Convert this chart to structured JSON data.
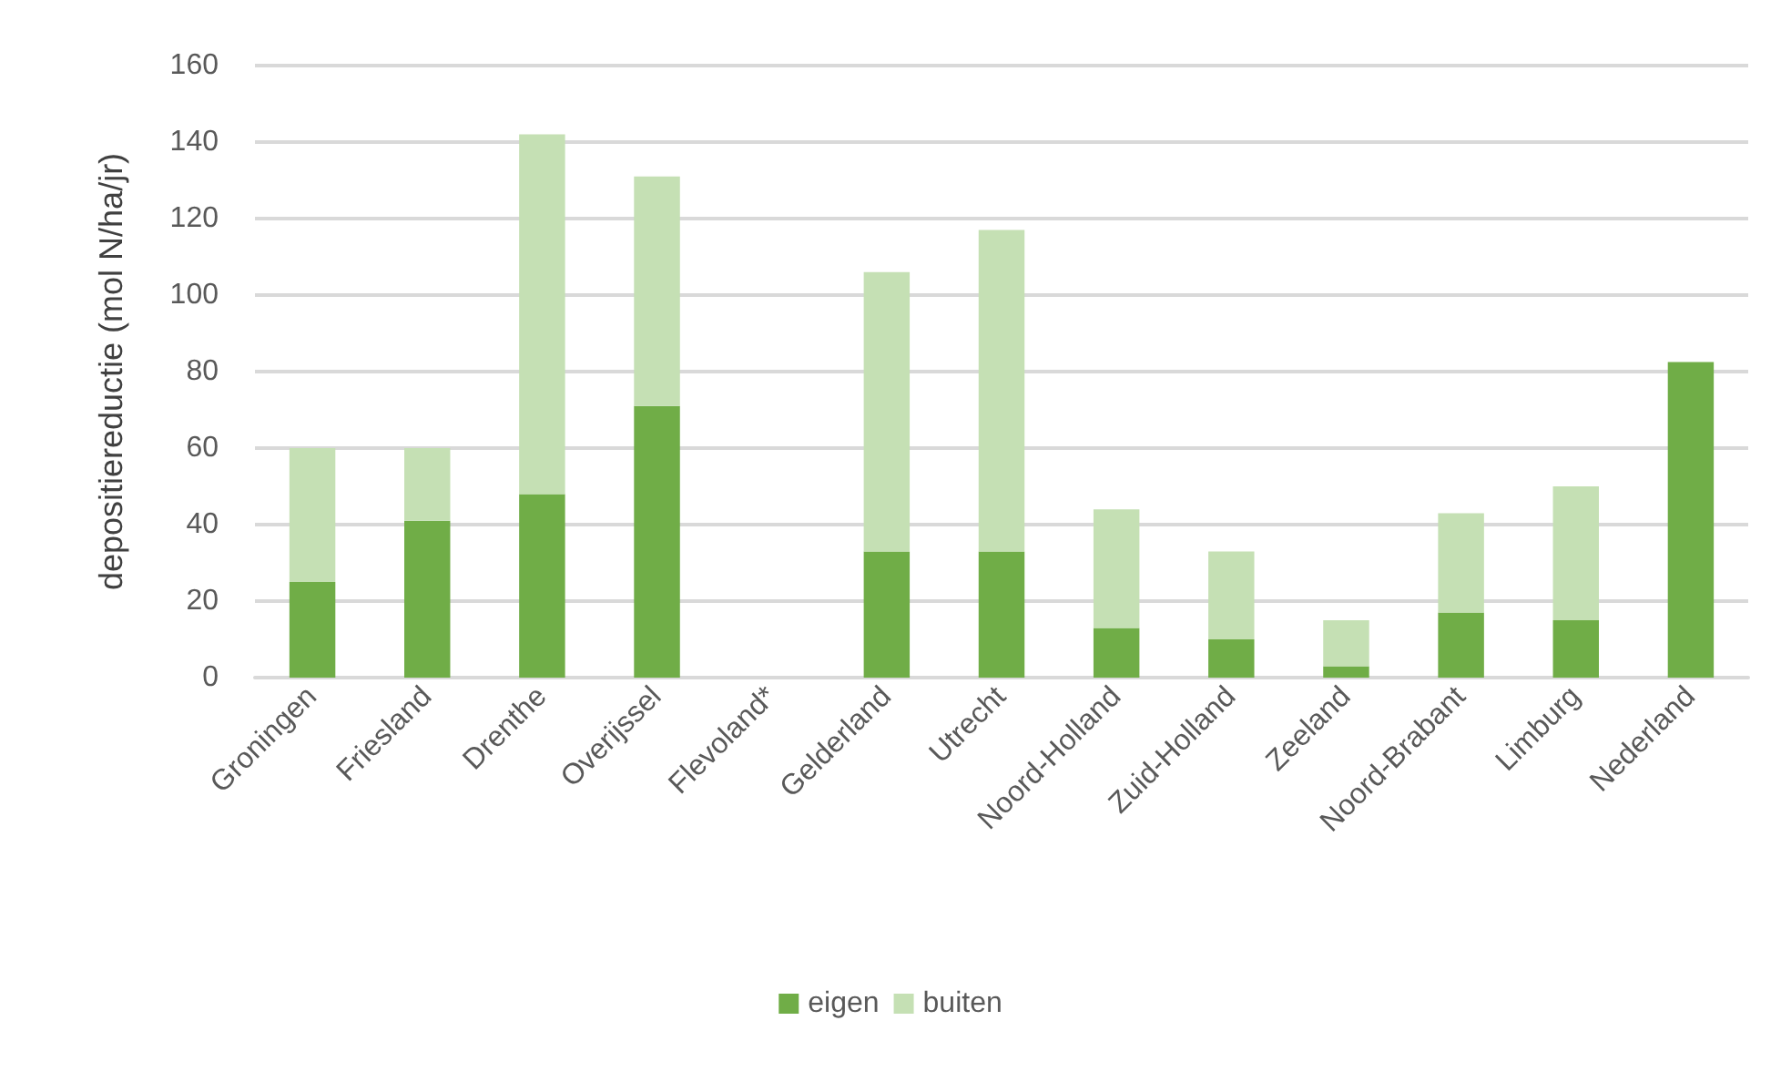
{
  "chart_data": {
    "type": "bar",
    "stacked": true,
    "ylabel": "depositiereductie (mol N/ha/jr)",
    "categories": [
      "Groningen",
      "Friesland",
      "Drenthe",
      "Overijssel",
      "Flevoland*",
      "Gelderland",
      "Utrecht",
      "Noord-Holland",
      "Zuid-Holland",
      "Zeeland",
      "Noord-Brabant",
      "Limburg",
      "Nederland"
    ],
    "series": [
      {
        "name": "eigen",
        "color": "#70ad47",
        "values": [
          25,
          41,
          48,
          71,
          null,
          33,
          33,
          13,
          10,
          3,
          17,
          15,
          82.5
        ]
      },
      {
        "name": "buiten",
        "color": "#c5e0b4",
        "values": [
          35,
          19,
          94,
          60,
          null,
          73,
          84,
          31,
          23,
          12,
          26,
          35,
          null
        ]
      }
    ],
    "ylim": [
      0,
      160
    ],
    "yticks": [
      0,
      20,
      40,
      60,
      80,
      100,
      120,
      140,
      160
    ],
    "grid": "y",
    "legend": "bottom"
  }
}
